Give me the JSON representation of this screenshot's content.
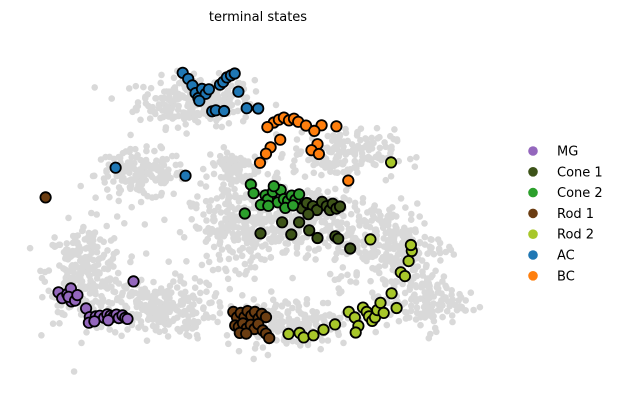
{
  "chart_data": {
    "type": "scatter",
    "title": "terminal states",
    "xlabel": "",
    "ylabel": "",
    "xlim": [
      0,
      100
    ],
    "ylim": [
      0,
      100
    ],
    "axes_visible": false,
    "grid": false,
    "legend_position": "right",
    "background_points": {
      "color": "#d9d9d9",
      "clusters": [
        {
          "cx": 36,
          "cy": 81,
          "sx": 9,
          "sy": 5,
          "n": 260
        },
        {
          "cx": 24,
          "cy": 60,
          "sx": 7,
          "sy": 5,
          "n": 160
        },
        {
          "cx": 12,
          "cy": 32,
          "sx": 6,
          "sy": 10,
          "n": 260
        },
        {
          "cx": 28,
          "cy": 22,
          "sx": 8,
          "sy": 6,
          "n": 240
        },
        {
          "cx": 46,
          "cy": 45,
          "sx": 8,
          "sy": 8,
          "n": 260
        },
        {
          "cx": 60,
          "cy": 48,
          "sx": 8,
          "sy": 7,
          "n": 240
        },
        {
          "cx": 68,
          "cy": 66,
          "sx": 8,
          "sy": 5,
          "n": 160
        },
        {
          "cx": 78,
          "cy": 40,
          "sx": 9,
          "sy": 9,
          "n": 260
        },
        {
          "cx": 56,
          "cy": 18,
          "sx": 10,
          "sy": 5,
          "n": 200
        },
        {
          "cx": 86,
          "cy": 24,
          "sx": 6,
          "sy": 6,
          "n": 140
        },
        {
          "cx": 44,
          "cy": 62,
          "sx": 4,
          "sy": 4,
          "n": 80
        }
      ]
    },
    "series": [
      {
        "name": "MG",
        "color": "#9467bd",
        "points": [
          [
            6.2,
            26.5
          ],
          [
            7.0,
            24.8
          ],
          [
            8.1,
            26.0
          ],
          [
            8.9,
            27.6
          ],
          [
            9.0,
            23.9
          ],
          [
            8.4,
            25.2
          ],
          [
            9.8,
            24.1
          ],
          [
            10.3,
            25.7
          ],
          [
            12.2,
            21.9
          ],
          [
            13.0,
            19.4
          ],
          [
            14.3,
            19.6
          ],
          [
            15.2,
            19.8
          ],
          [
            16.1,
            19.2
          ],
          [
            16.8,
            20.2
          ],
          [
            17.5,
            19.8
          ],
          [
            18.1,
            19.5
          ],
          [
            18.8,
            20.1
          ],
          [
            19.3,
            19.1
          ],
          [
            20.1,
            19.9
          ],
          [
            20.7,
            19.2
          ],
          [
            21.2,
            18.9
          ],
          [
            12.8,
            17.8
          ],
          [
            14.0,
            18.2
          ],
          [
            17.0,
            18.5
          ],
          [
            22.5,
            29.6
          ]
        ]
      },
      {
        "name": "Cone 1",
        "color": "#3d5319",
        "points": [
          [
            59.1,
            50.5
          ],
          [
            60.2,
            52.0
          ],
          [
            61.5,
            51.1
          ],
          [
            62.4,
            50.0
          ],
          [
            63.5,
            52.3
          ],
          [
            64.5,
            51.1
          ],
          [
            65.2,
            50.0
          ],
          [
            65.8,
            51.8
          ],
          [
            66.6,
            50.4
          ],
          [
            67.4,
            51.0
          ],
          [
            60.5,
            48.8
          ],
          [
            58.5,
            46.5
          ],
          [
            54.8,
            46.5
          ],
          [
            60.7,
            44.2
          ],
          [
            62.5,
            42.0
          ],
          [
            66.4,
            42.5
          ],
          [
            67.0,
            41.8
          ],
          [
            69.6,
            39.0
          ],
          [
            50.1,
            43.3
          ],
          [
            56.8,
            43.0
          ]
        ]
      },
      {
        "name": "Cone 2",
        "color": "#2ca02c",
        "points": [
          [
            48.0,
            57.3
          ],
          [
            48.6,
            54.8
          ],
          [
            51.2,
            54.2
          ],
          [
            51.7,
            53.0
          ],
          [
            52.8,
            55.2
          ],
          [
            53.9,
            52.2
          ],
          [
            54.5,
            55.7
          ],
          [
            55.2,
            53.1
          ],
          [
            56.1,
            52.6
          ],
          [
            56.9,
            54.1
          ],
          [
            57.7,
            52.9
          ],
          [
            58.5,
            54.5
          ],
          [
            53.0,
            56.8
          ],
          [
            50.2,
            51.5
          ],
          [
            46.7,
            49.0
          ],
          [
            55.5,
            50.6
          ],
          [
            57.2,
            51.3
          ],
          [
            51.8,
            51.2
          ]
        ]
      },
      {
        "name": "Rod 1",
        "color": "#6b3d12",
        "points": [
          [
            44.2,
            20.9
          ],
          [
            45.0,
            19.3
          ],
          [
            45.8,
            20.6
          ],
          [
            46.6,
            19.4
          ],
          [
            47.3,
            21.1
          ],
          [
            48.1,
            19.8
          ],
          [
            48.9,
            20.9
          ],
          [
            49.7,
            19.0
          ],
          [
            50.4,
            20.3
          ],
          [
            51.3,
            19.4
          ],
          [
            44.6,
            17.0
          ],
          [
            45.4,
            16.6
          ],
          [
            46.3,
            17.6
          ],
          [
            47.1,
            16.1
          ],
          [
            48.0,
            17.2
          ],
          [
            48.8,
            16.0
          ],
          [
            49.6,
            17.4
          ],
          [
            50.6,
            15.6
          ],
          [
            51.3,
            14.7
          ],
          [
            52.0,
            13.4
          ],
          [
            45.6,
            14.9
          ],
          [
            47.0,
            14.7
          ],
          [
            3.4,
            53.6
          ]
        ]
      },
      {
        "name": "Rod 2",
        "color": "#a8c72a",
        "points": [
          [
            56.2,
            14.6
          ],
          [
            58.6,
            14.9
          ],
          [
            59.5,
            13.6
          ],
          [
            61.6,
            14.2
          ],
          [
            63.8,
            15.8
          ],
          [
            66.3,
            17.3
          ],
          [
            69.3,
            20.9
          ],
          [
            74.0,
            41.6
          ],
          [
            70.6,
            19.3
          ],
          [
            71.4,
            16.9
          ],
          [
            70.8,
            15.0
          ],
          [
            72.4,
            22.1
          ],
          [
            73.2,
            20.9
          ],
          [
            73.7,
            19.6
          ],
          [
            74.4,
            18.3
          ],
          [
            75.0,
            19.3
          ],
          [
            75.5,
            21.4
          ],
          [
            76.2,
            23.5
          ],
          [
            76.9,
            20.6
          ],
          [
            78.6,
            26.2
          ],
          [
            79.7,
            22.0
          ],
          [
            80.6,
            32.2
          ],
          [
            81.5,
            31.1
          ],
          [
            82.3,
            35.4
          ],
          [
            83.0,
            38.3
          ],
          [
            82.8,
            40.0
          ],
          [
            78.5,
            63.6
          ]
        ]
      },
      {
        "name": "AC",
        "color": "#1f77b4",
        "points": [
          [
            33.2,
            89.2
          ],
          [
            34.4,
            87.5
          ],
          [
            35.3,
            85.6
          ],
          [
            36.0,
            83.4
          ],
          [
            36.6,
            82.0
          ],
          [
            37.4,
            84.6
          ],
          [
            38.2,
            83.2
          ],
          [
            38.9,
            84.5
          ],
          [
            39.6,
            78.2
          ],
          [
            40.4,
            78.5
          ],
          [
            41.3,
            85.8
          ],
          [
            42.0,
            86.6
          ],
          [
            42.8,
            87.9
          ],
          [
            43.7,
            88.5
          ],
          [
            44.5,
            89.0
          ],
          [
            45.3,
            83.8
          ],
          [
            47.1,
            79.1
          ],
          [
            49.6,
            79.0
          ],
          [
            42.2,
            78.3
          ],
          [
            36.8,
            81.2
          ],
          [
            18.6,
            62.1
          ],
          [
            33.8,
            59.8
          ]
        ]
      },
      {
        "name": "BC",
        "color": "#ff7f0e",
        "points": [
          [
            53.0,
            75.0
          ],
          [
            54.1,
            75.8
          ],
          [
            55.2,
            76.4
          ],
          [
            56.3,
            75.6
          ],
          [
            57.4,
            76.1
          ],
          [
            58.3,
            75.2
          ],
          [
            51.6,
            73.7
          ],
          [
            54.4,
            70.1
          ],
          [
            52.3,
            67.9
          ],
          [
            51.3,
            66.1
          ],
          [
            50.0,
            63.5
          ],
          [
            60.0,
            74.1
          ],
          [
            63.4,
            74.2
          ],
          [
            61.8,
            72.6
          ],
          [
            62.5,
            68.8
          ],
          [
            61.2,
            67.1
          ],
          [
            62.8,
            66.0
          ],
          [
            66.6,
            73.9
          ],
          [
            69.2,
            58.4
          ]
        ]
      }
    ]
  }
}
